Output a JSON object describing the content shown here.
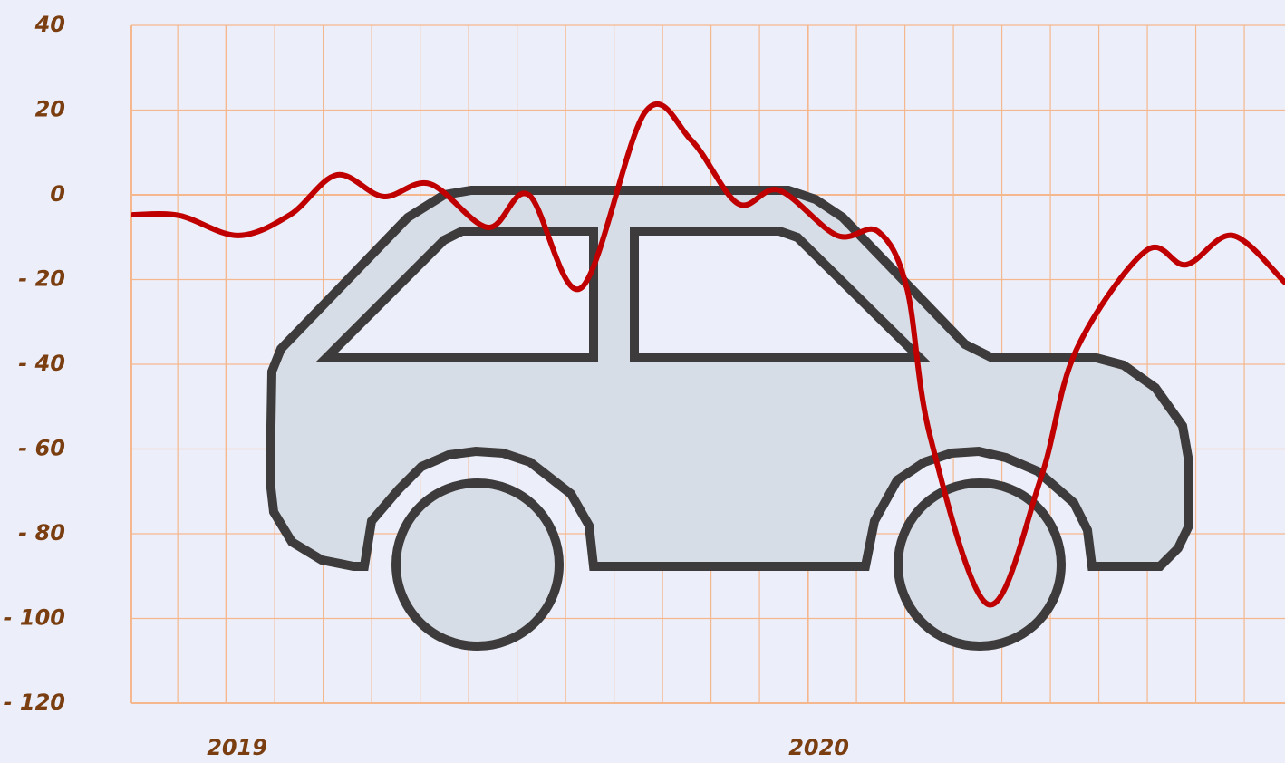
{
  "chart_data": {
    "type": "line",
    "x": [
      2018.84,
      2018.92,
      2019.02,
      2019.11,
      2019.19,
      2019.27,
      2019.35,
      2019.45,
      2019.52,
      2019.61,
      2019.72,
      2019.8,
      2019.88,
      2019.95,
      2020.05,
      2020.12,
      2020.17,
      2020.21,
      2020.31,
      2020.4,
      2020.46,
      2020.58,
      2020.65,
      2020.73,
      2020.82
    ],
    "series": [
      {
        "color": "#c00000",
        "values": [
          -4.7,
          -4.9,
          -9.6,
          -4.7,
          4.7,
          -0.4,
          2.6,
          -7.7,
          0,
          -22,
          19.5,
          12.8,
          -2.1,
          1.1,
          -9.6,
          -8.6,
          -22,
          -57,
          -96.7,
          -67,
          -37,
          -13.3,
          -16.5,
          -9.6,
          -20.7
        ]
      }
    ],
    "xlim": [
      2018.837,
      2020.82
    ],
    "xticks": [
      2019,
      2020
    ],
    "ylim": [
      -120,
      40
    ],
    "yticks": [
      40,
      20,
      0,
      {
        "value": -20,
        "label": "- 20"
      },
      {
        "value": -40,
        "label": "- 40"
      },
      {
        "value": -60,
        "label": "- 60"
      },
      {
        "value": -80,
        "label": "- 80"
      },
      {
        "value": -100,
        "label": "- 100"
      },
      {
        "value": -120,
        "label": "- 120"
      }
    ],
    "grid": true
  }
}
